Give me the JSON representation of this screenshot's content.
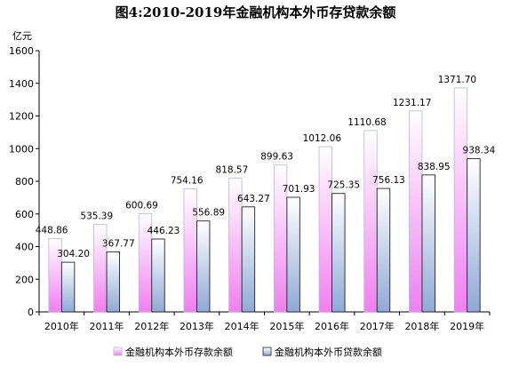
{
  "chart_data": {
    "type": "bar",
    "title": "图4:2010-2019年金融机构本外币存贷款余额",
    "ylabel": "亿元",
    "xlabel": "",
    "categories": [
      "2010年",
      "2011年",
      "2012年",
      "2013年",
      "2014年",
      "2015年",
      "2016年",
      "2017年",
      "2018年",
      "2019年"
    ],
    "series": [
      {
        "name": "金融机构本外币存款余额",
        "values": [
          448.86,
          535.39,
          600.69,
          754.16,
          818.57,
          899.63,
          1012.06,
          1110.68,
          1231.17,
          1371.7
        ],
        "labels": [
          "448.86",
          "535.39",
          "600.69",
          "754.16",
          "818.57",
          "899.63",
          "1012.06",
          "1110.68",
          "1231.17",
          "1371.70"
        ],
        "color_top": "#ffffff",
        "color_bottom": "#f07ff0",
        "stroke": "#b7b7d9"
      },
      {
        "name": "金融机构本外币贷款余额",
        "values": [
          304.2,
          367.77,
          446.23,
          556.89,
          643.27,
          701.93,
          725.35,
          756.13,
          838.95,
          938.34
        ],
        "labels": [
          "304.20",
          "367.77",
          "446.23",
          "556.89",
          "643.27",
          "701.93",
          "725.35",
          "756.13",
          "838.95",
          "938.34"
        ],
        "color_top": "#ffffff",
        "color_bottom": "#8fa9d6",
        "stroke": "#222222"
      }
    ],
    "ylim": [
      0,
      1600
    ],
    "yticks": [
      0,
      200,
      400,
      600,
      800,
      1000,
      1200,
      1400,
      1600
    ],
    "grid": false,
    "legend": "bottom"
  }
}
